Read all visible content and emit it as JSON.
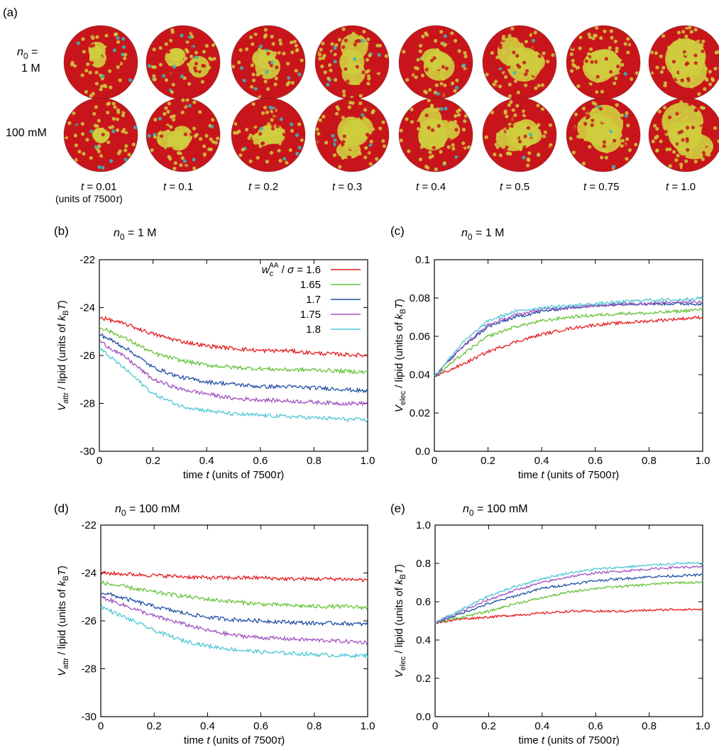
{
  "panel_a": {
    "label": "(a)",
    "row_labels": [
      {
        "prefix_italic": "n",
        "subscript": "0",
        "text": " =",
        "line2": "1 M"
      },
      {
        "text": "100 mM"
      }
    ],
    "time_labels": [
      "0.01",
      "0.1",
      "0.2",
      "0.3",
      "0.4",
      "0.5",
      "0.75",
      "1.0"
    ],
    "time_var": "t",
    "units_note_prefix": "(units of 7500",
    "units_note_sym": "τ",
    "units_note_suffix": ")",
    "colors": {
      "red": "#c8151b",
      "yellow": "#cfcc3e",
      "cyan": "#37b9c1"
    }
  },
  "series_colors": [
    "#e41a1c",
    "#66c23a",
    "#1f4fa3",
    "#a052c0",
    "#4fc7d3"
  ],
  "legend": {
    "prefix_italic": "w",
    "sub": "c",
    "sup": "AA",
    "mid": " / ",
    "sigma": "σ",
    "eq": " = ",
    "entries": [
      "1.6",
      "1.65",
      "1.7",
      "1.75",
      "1.8"
    ]
  },
  "xlabel_parts": {
    "pre": "time ",
    "var": "t",
    "post": " (units of 7500",
    "tau": "τ",
    "close": ")"
  },
  "chart_data": [
    {
      "panel": "(b)",
      "type": "line",
      "title_prefix": "n",
      "title_sub": "0",
      "title_rest": " = 1 M",
      "ylabel_var": "V",
      "ylabel_sub": "attr",
      "ylabel_mid": " / lipid (units of ",
      "ylabel_k": "k",
      "ylabel_ksub": "B",
      "ylabel_T": "T",
      "ylabel_close": ")",
      "xlim": [
        0,
        1.0
      ],
      "ylim": [
        -30,
        -22
      ],
      "xticks": [
        "0",
        "0.2",
        "0.4",
        "0.6",
        "0.8",
        "1.0"
      ],
      "yticks": [
        "-30",
        "-28",
        "-26",
        "-24",
        "-22"
      ],
      "x": [
        0,
        0.1,
        0.2,
        0.3,
        0.4,
        0.5,
        0.6,
        0.7,
        0.8,
        0.9,
        1.0
      ],
      "series": [
        {
          "name": "1.6",
          "values": [
            -24.4,
            -24.7,
            -25.1,
            -25.4,
            -25.6,
            -25.7,
            -25.8,
            -25.8,
            -25.9,
            -25.95,
            -26.0
          ]
        },
        {
          "name": "1.65",
          "values": [
            -24.8,
            -25.3,
            -25.9,
            -26.2,
            -26.4,
            -26.5,
            -26.55,
            -26.6,
            -26.6,
            -26.65,
            -26.7
          ]
        },
        {
          "name": "1.7",
          "values": [
            -25.1,
            -25.7,
            -26.5,
            -26.9,
            -27.1,
            -27.2,
            -27.3,
            -27.3,
            -27.35,
            -27.4,
            -27.5
          ]
        },
        {
          "name": "1.75",
          "values": [
            -25.4,
            -26.1,
            -27.0,
            -27.4,
            -27.6,
            -27.8,
            -27.85,
            -27.9,
            -27.95,
            -28.0,
            -28.0
          ]
        },
        {
          "name": "1.8",
          "values": [
            -25.7,
            -26.6,
            -27.6,
            -28.1,
            -28.3,
            -28.45,
            -28.5,
            -28.55,
            -28.6,
            -28.65,
            -28.7
          ]
        }
      ],
      "noise": 0.08,
      "legend_position": "top-right"
    },
    {
      "panel": "(c)",
      "type": "line",
      "title_prefix": "n",
      "title_sub": "0",
      "title_rest": " = 1 M",
      "ylabel_var": "V",
      "ylabel_sub": "elec",
      "ylabel_mid": " / lipid (units of ",
      "ylabel_k": "k",
      "ylabel_ksub": "B",
      "ylabel_T": "T",
      "ylabel_close": ")",
      "xlim": [
        0,
        1.0
      ],
      "ylim": [
        0,
        0.1
      ],
      "xticks": [
        "0",
        "0.2",
        "0.4",
        "0.6",
        "0.8",
        "1.0"
      ],
      "yticks": [
        "0.0",
        "0.02",
        "0.04",
        "0.06",
        "0.08",
        "0.1"
      ],
      "x": [
        0,
        0.1,
        0.2,
        0.3,
        0.4,
        0.5,
        0.6,
        0.7,
        0.8,
        0.9,
        1.0
      ],
      "series": [
        {
          "name": "1.6",
          "values": [
            0.039,
            0.045,
            0.052,
            0.057,
            0.061,
            0.064,
            0.066,
            0.067,
            0.068,
            0.069,
            0.07
          ]
        },
        {
          "name": "1.65",
          "values": [
            0.039,
            0.05,
            0.06,
            0.065,
            0.068,
            0.07,
            0.071,
            0.072,
            0.072,
            0.073,
            0.074
          ]
        },
        {
          "name": "1.7",
          "values": [
            0.039,
            0.054,
            0.065,
            0.07,
            0.073,
            0.075,
            0.076,
            0.077,
            0.077,
            0.077,
            0.077
          ]
        },
        {
          "name": "1.75",
          "values": [
            0.039,
            0.054,
            0.066,
            0.071,
            0.074,
            0.075,
            0.076,
            0.077,
            0.077,
            0.078,
            0.078
          ]
        },
        {
          "name": "1.8",
          "values": [
            0.039,
            0.056,
            0.068,
            0.073,
            0.075,
            0.076,
            0.077,
            0.078,
            0.079,
            0.079,
            0.08
          ]
        }
      ],
      "noise": 0.0008
    },
    {
      "panel": "(d)",
      "type": "line",
      "title_prefix": "n",
      "title_sub": "0",
      "title_rest": " = 100 mM",
      "ylabel_var": "V",
      "ylabel_sub": "attr",
      "ylabel_mid": " / lipid (units of ",
      "ylabel_k": "k",
      "ylabel_ksub": "B",
      "ylabel_T": "T",
      "ylabel_close": ")",
      "xlim": [
        0,
        1.0
      ],
      "ylim": [
        -30,
        -22
      ],
      "xticks": [
        "0",
        "0.2",
        "0.4",
        "0.6",
        "0.8",
        "1.0"
      ],
      "yticks": [
        "-30",
        "-28",
        "-26",
        "-24",
        "-22"
      ],
      "x": [
        0,
        0.1,
        0.2,
        0.3,
        0.4,
        0.5,
        0.6,
        0.7,
        0.8,
        0.9,
        1.0
      ],
      "series": [
        {
          "name": "1.6",
          "values": [
            -24.0,
            -24.05,
            -24.1,
            -24.15,
            -24.2,
            -24.2,
            -24.2,
            -24.25,
            -24.25,
            -24.25,
            -24.3
          ]
        },
        {
          "name": "1.65",
          "values": [
            -24.4,
            -24.6,
            -24.8,
            -24.95,
            -25.1,
            -25.2,
            -25.3,
            -25.35,
            -25.4,
            -25.4,
            -25.45
          ]
        },
        {
          "name": "1.7",
          "values": [
            -24.8,
            -25.1,
            -25.4,
            -25.65,
            -25.85,
            -25.95,
            -26.0,
            -26.05,
            -26.1,
            -26.1,
            -26.15
          ]
        },
        {
          "name": "1.75",
          "values": [
            -25.0,
            -25.4,
            -25.8,
            -26.1,
            -26.4,
            -26.6,
            -26.7,
            -26.75,
            -26.8,
            -26.85,
            -26.9
          ]
        },
        {
          "name": "1.8",
          "values": [
            -25.4,
            -25.9,
            -26.4,
            -26.8,
            -27.05,
            -27.2,
            -27.3,
            -27.35,
            -27.4,
            -27.45,
            -27.45
          ]
        }
      ],
      "noise": 0.08
    },
    {
      "panel": "(e)",
      "type": "line",
      "title_prefix": "n",
      "title_sub": "0",
      "title_rest": " = 100 mM",
      "ylabel_var": "V",
      "ylabel_sub": "elec",
      "ylabel_mid": " / lipid (units of ",
      "ylabel_k": "k",
      "ylabel_ksub": "B",
      "ylabel_T": "T",
      "ylabel_close": ")",
      "xlim": [
        0,
        1.0
      ],
      "ylim": [
        0,
        1.0
      ],
      "xticks": [
        "0",
        "0.2",
        "0.4",
        "0.6",
        "0.8",
        "1.0"
      ],
      "yticks": [
        "0.0",
        "0.2",
        "0.4",
        "0.6",
        "0.8",
        "1.0"
      ],
      "x": [
        0,
        0.1,
        0.2,
        0.3,
        0.4,
        0.5,
        0.6,
        0.7,
        0.8,
        0.9,
        1.0
      ],
      "series": [
        {
          "name": "1.6",
          "values": [
            0.49,
            0.51,
            0.52,
            0.53,
            0.54,
            0.55,
            0.55,
            0.55,
            0.555,
            0.56,
            0.56
          ]
        },
        {
          "name": "1.65",
          "values": [
            0.49,
            0.52,
            0.55,
            0.59,
            0.62,
            0.65,
            0.67,
            0.68,
            0.69,
            0.7,
            0.7
          ]
        },
        {
          "name": "1.7",
          "values": [
            0.49,
            0.54,
            0.59,
            0.63,
            0.67,
            0.69,
            0.71,
            0.72,
            0.73,
            0.735,
            0.74
          ]
        },
        {
          "name": "1.75",
          "values": [
            0.49,
            0.55,
            0.61,
            0.66,
            0.7,
            0.73,
            0.75,
            0.76,
            0.77,
            0.78,
            0.78
          ]
        },
        {
          "name": "1.8",
          "values": [
            0.49,
            0.56,
            0.63,
            0.68,
            0.72,
            0.75,
            0.77,
            0.78,
            0.79,
            0.8,
            0.8
          ]
        }
      ],
      "noise": 0.006
    }
  ]
}
